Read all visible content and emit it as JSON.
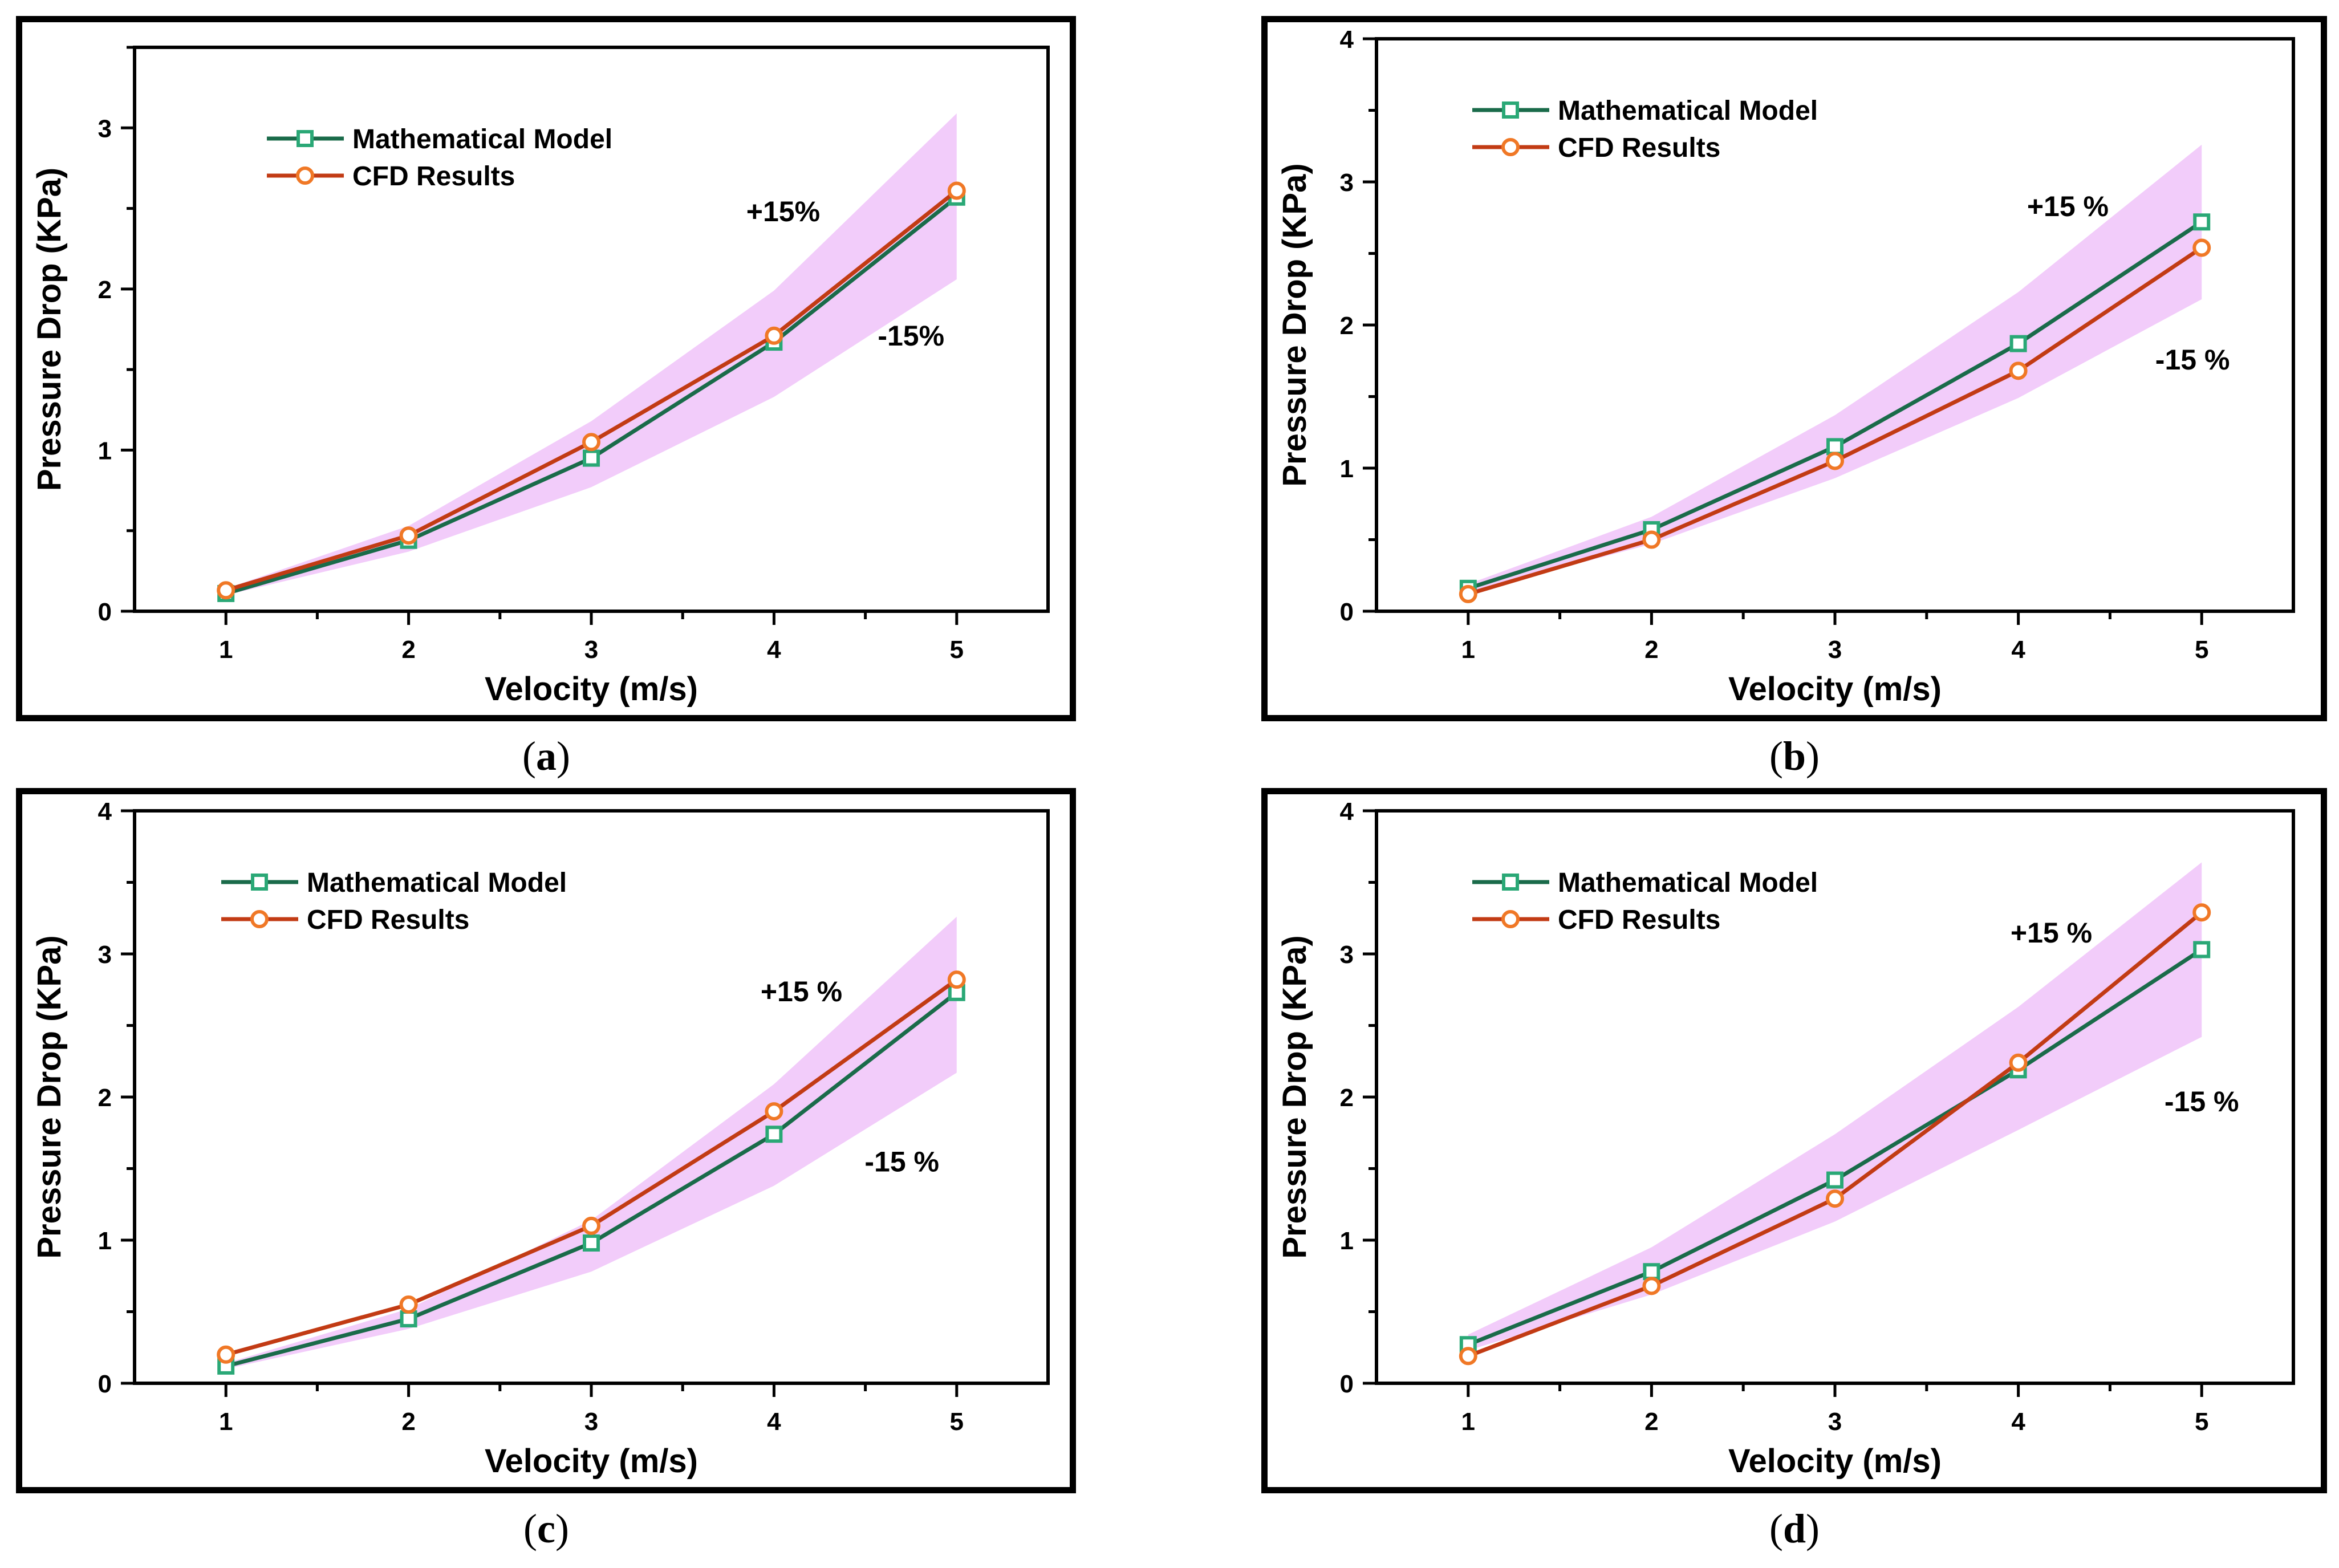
{
  "colors": {
    "model": "#1a6b4a",
    "model_marker": "#2aa876",
    "cfd": "#c23b14",
    "cfd_marker": "#f07826",
    "band": "#f2ccfa"
  },
  "chart_data": [
    {
      "type": "line",
      "panel": "a",
      "caption_letter": "a",
      "xlabel": "Velocity (m/s)",
      "ylabel": "Pressure Drop (KPa)",
      "xlim": [
        0.5,
        5.5
      ],
      "ylim": [
        0,
        3.5
      ],
      "x": [
        1,
        2,
        3,
        4,
        5
      ],
      "xticks": [
        "1",
        "2",
        "3",
        "4",
        "5"
      ],
      "yticks": [
        "0",
        "1",
        "2",
        "3"
      ],
      "legend_position": "top-left",
      "series": [
        {
          "name": "Mathematical Model",
          "values": [
            0.11,
            0.44,
            0.95,
            1.67,
            2.57
          ]
        },
        {
          "name": "CFD Results",
          "values": [
            0.13,
            0.47,
            1.05,
            1.71,
            2.61
          ]
        }
      ],
      "band": {
        "upper": [
          0.14,
          0.53,
          1.18,
          1.99,
          3.09
        ],
        "lower": [
          0.1,
          0.37,
          0.77,
          1.33,
          2.06
        ]
      },
      "annotations": [
        {
          "text": "+15%",
          "x": 4.05,
          "y": 2.42
        },
        {
          "text": "-15%",
          "x": 4.75,
          "y": 1.65
        }
      ]
    },
    {
      "type": "line",
      "panel": "b",
      "caption_letter": "b",
      "xlabel": "Velocity (m/s)",
      "ylabel": "Pressure Drop (KPa)",
      "xlim": [
        0.5,
        5.5
      ],
      "ylim": [
        0,
        4
      ],
      "x": [
        1,
        2,
        3,
        4,
        5
      ],
      "xticks": [
        "1",
        "2",
        "3",
        "4",
        "5"
      ],
      "yticks": [
        "0",
        "1",
        "2",
        "3",
        "4"
      ],
      "legend_position": "top-left",
      "series": [
        {
          "name": "Mathematical Model",
          "values": [
            0.16,
            0.57,
            1.15,
            1.87,
            2.72
          ]
        },
        {
          "name": "CFD Results",
          "values": [
            0.12,
            0.5,
            1.05,
            1.68,
            2.54
          ]
        }
      ],
      "band": {
        "upper": [
          0.19,
          0.66,
          1.37,
          2.23,
          3.26
        ],
        "lower": [
          0.13,
          0.47,
          0.93,
          1.49,
          2.18
        ]
      },
      "annotations": [
        {
          "text": "+15 %",
          "x": 4.27,
          "y": 2.76
        },
        {
          "text": "-15 %",
          "x": 4.95,
          "y": 1.69
        }
      ]
    },
    {
      "type": "line",
      "panel": "c",
      "caption_letter": "c",
      "xlabel": "Velocity (m/s)",
      "ylabel": "Pressure Drop (KPa)",
      "xlim": [
        0.5,
        5.5
      ],
      "ylim": [
        0,
        4
      ],
      "x": [
        1,
        2,
        3,
        4,
        5
      ],
      "xticks": [
        "1",
        "2",
        "3",
        "4",
        "5"
      ],
      "yticks": [
        "0",
        "1",
        "2",
        "3",
        "4"
      ],
      "legend_position": "top-left",
      "series": [
        {
          "name": "Mathematical Model",
          "values": [
            0.12,
            0.45,
            0.98,
            1.74,
            2.73
          ]
        },
        {
          "name": "CFD Results",
          "values": [
            0.2,
            0.55,
            1.1,
            1.9,
            2.82
          ]
        }
      ],
      "band": {
        "upper": [
          0.14,
          0.52,
          1.14,
          2.09,
          3.26
        ],
        "lower": [
          0.1,
          0.38,
          0.78,
          1.38,
          2.17
        ]
      },
      "annotations": [
        {
          "text": "+15 %",
          "x": 4.15,
          "y": 2.67
        },
        {
          "text": "-15 %",
          "x": 4.7,
          "y": 1.48
        }
      ]
    },
    {
      "type": "line",
      "panel": "d",
      "caption_letter": "d",
      "xlabel": "Velocity (m/s)",
      "ylabel": "Pressure Drop (KPa)",
      "xlim": [
        0.5,
        5.5
      ],
      "ylim": [
        0,
        4
      ],
      "x": [
        1,
        2,
        3,
        4,
        5
      ],
      "xticks": [
        "1",
        "2",
        "3",
        "4",
        "5"
      ],
      "yticks": [
        "0",
        "1",
        "2",
        "3",
        "4"
      ],
      "legend_position": "top-left",
      "series": [
        {
          "name": "Mathematical Model",
          "values": [
            0.27,
            0.78,
            1.42,
            2.19,
            3.03
          ]
        },
        {
          "name": "CFD Results",
          "values": [
            0.19,
            0.68,
            1.29,
            2.24,
            3.29
          ]
        }
      ],
      "band": {
        "upper": [
          0.34,
          0.95,
          1.74,
          2.63,
          3.64
        ],
        "lower": [
          0.23,
          0.62,
          1.13,
          1.77,
          2.42
        ]
      },
      "annotations": [
        {
          "text": "+15 %",
          "x": 4.18,
          "y": 3.08
        },
        {
          "text": "-15 %",
          "x": 5.0,
          "y": 1.9
        }
      ]
    }
  ]
}
